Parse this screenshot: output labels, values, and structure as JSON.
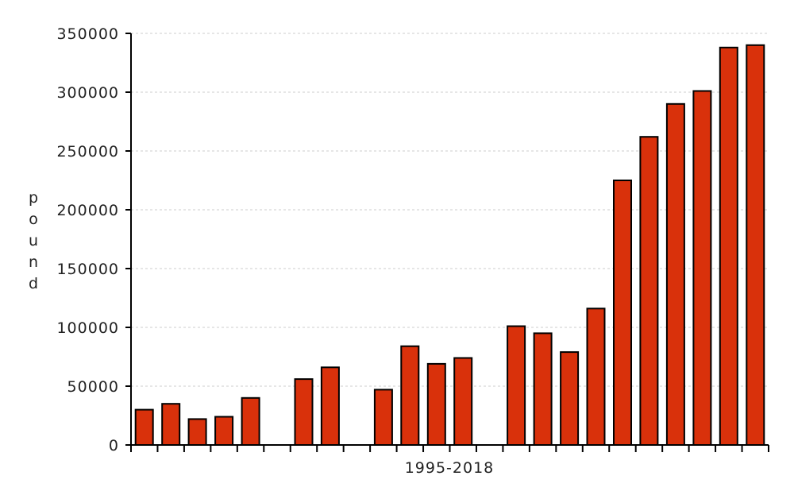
{
  "chart_data": {
    "type": "bar",
    "title": "",
    "xlabel": "1995-2018",
    "ylabel": "pound",
    "ylim": [
      0,
      350000
    ],
    "yticks": [
      "0",
      "50000",
      "100000",
      "150000",
      "200000",
      "250000",
      "300000",
      "350000"
    ],
    "grid": true,
    "legend": "none",
    "bar_color": "#d9310b",
    "values": [
      30000,
      35000,
      22000,
      24000,
      40000,
      0,
      56000,
      66000,
      0,
      47000,
      84000,
      69000,
      74000,
      0,
      101000,
      95000,
      79000,
      116000,
      225000,
      262000,
      290000,
      301000,
      338000,
      340000
    ]
  }
}
